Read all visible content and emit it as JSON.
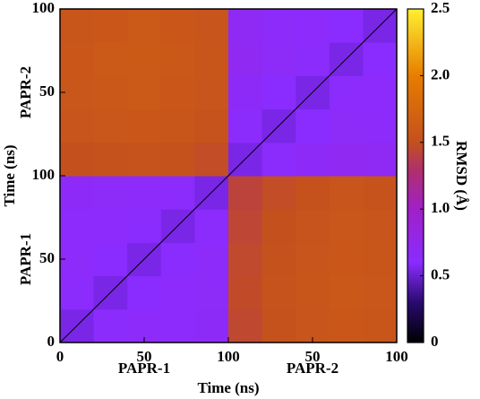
{
  "chart_data": {
    "type": "heatmap",
    "xlabel": "Time (ns)",
    "ylabel": "Time (ns)",
    "colorbar_label": "RMSD (Å)",
    "x_groups": [
      "PAPR-1",
      "PAPR-2"
    ],
    "y_groups": [
      "PAPR-1",
      "PAPR-2"
    ],
    "xlim": [
      0,
      200
    ],
    "ylim": [
      0,
      200
    ],
    "xticks": [
      0,
      {
        "value": 50,
        "label": "50"
      },
      {
        "value": 100,
        "label": "100"
      },
      {
        "value": 150,
        "label": "50"
      },
      {
        "value": 200,
        "label": "100"
      }
    ],
    "yticks": [
      0,
      {
        "value": 50,
        "label": "50"
      },
      {
        "value": 100,
        "label": "100"
      },
      {
        "value": 150,
        "label": "50"
      },
      {
        "value": 200,
        "label": "100"
      }
    ],
    "xbins": [
      0,
      20,
      40,
      60,
      80,
      100,
      120,
      140,
      160,
      180,
      200
    ],
    "ybins": [
      0,
      20,
      40,
      60,
      80,
      100,
      120,
      140,
      160,
      180,
      200
    ],
    "z": [
      [
        0.55,
        0.62,
        0.64,
        0.63,
        0.66,
        1.45,
        1.52,
        1.55,
        1.58,
        1.56
      ],
      [
        0.62,
        0.55,
        0.6,
        0.63,
        0.65,
        1.47,
        1.53,
        1.56,
        1.59,
        1.57
      ],
      [
        0.64,
        0.6,
        0.55,
        0.61,
        0.64,
        1.46,
        1.52,
        1.55,
        1.58,
        1.56
      ],
      [
        0.63,
        0.63,
        0.61,
        0.55,
        0.62,
        1.44,
        1.5,
        1.54,
        1.57,
        1.55
      ],
      [
        0.66,
        0.65,
        0.64,
        0.62,
        0.55,
        1.42,
        1.48,
        1.52,
        1.55,
        1.53
      ],
      [
        1.5,
        1.52,
        1.53,
        1.51,
        1.48,
        0.55,
        0.62,
        0.66,
        0.7,
        0.68
      ],
      [
        1.55,
        1.57,
        1.58,
        1.56,
        1.53,
        0.62,
        0.55,
        0.6,
        0.65,
        0.64
      ],
      [
        1.57,
        1.59,
        1.6,
        1.58,
        1.55,
        0.66,
        0.6,
        0.55,
        0.62,
        0.63
      ],
      [
        1.58,
        1.6,
        1.61,
        1.59,
        1.56,
        0.7,
        0.65,
        0.62,
        0.55,
        0.6
      ],
      [
        1.56,
        1.58,
        1.6,
        1.58,
        1.55,
        0.68,
        0.64,
        0.63,
        0.6,
        0.55
      ]
    ],
    "clim": [
      0,
      2.5
    ],
    "cticks": [
      0,
      0.5,
      {
        "value": 1,
        "label": "1.0"
      },
      1.5,
      {
        "value": 2,
        "label": "2.0"
      },
      2.5
    ],
    "colormap": [
      {
        "value": 0,
        "color": "#000000"
      },
      {
        "value": 0.3,
        "color": "#2a0a6e"
      },
      {
        "value": 0.6,
        "color": "#8a2cff"
      },
      {
        "value": 1.0,
        "color": "#a020c8"
      },
      {
        "value": 1.3,
        "color": "#b0306a"
      },
      {
        "value": 1.5,
        "color": "#c4501e"
      },
      {
        "value": 2.0,
        "color": "#e87d00"
      },
      {
        "value": 2.5,
        "color": "#fff030"
      }
    ]
  }
}
